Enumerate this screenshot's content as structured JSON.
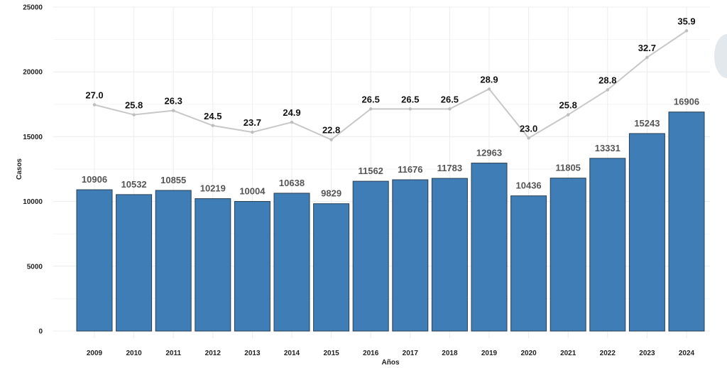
{
  "chart_data": {
    "type": "bar",
    "xlabel": "Años",
    "ylabel": "Casos",
    "ylim": [
      0,
      25000
    ],
    "yticks": [
      "0",
      "5000",
      "10000",
      "15000",
      "20000",
      "25000"
    ],
    "categories": [
      "2009",
      "2010",
      "2011",
      "2012",
      "2013",
      "2014",
      "2015",
      "2016",
      "2017",
      "2018",
      "2019",
      "2020",
      "2021",
      "2022",
      "2023",
      "2024"
    ],
    "series": [
      {
        "type": "bar",
        "values": [
          10906,
          10532,
          10855,
          10219,
          10004,
          10638,
          9829,
          11562,
          11676,
          11783,
          12963,
          10436,
          11805,
          13331,
          15243,
          16906
        ],
        "labels": [
          "10906",
          "10532",
          "10855",
          "10219",
          "10004",
          "10638",
          "9829",
          "11562",
          "11676",
          "11783",
          "12963",
          "10436",
          "11805",
          "13331",
          "15243",
          "16906"
        ]
      },
      {
        "type": "line",
        "values": [
          27.0,
          25.8,
          26.3,
          24.5,
          23.7,
          24.9,
          22.8,
          26.5,
          26.5,
          26.5,
          28.9,
          23.0,
          25.8,
          28.8,
          32.7,
          35.9
        ],
        "labels": [
          "27.0",
          "25.8",
          "26.3",
          "24.5",
          "23.7",
          "24.9",
          "22.8",
          "26.5",
          "26.5",
          "26.5",
          "28.9",
          "23.0",
          "25.8",
          "28.8",
          "32.7",
          "35.9"
        ]
      }
    ],
    "grid": true,
    "colors": {
      "bar": "#3f7db6",
      "bar_edge": "#2a3e50",
      "line": "#c8c8c8",
      "grid": "#ececec"
    }
  }
}
